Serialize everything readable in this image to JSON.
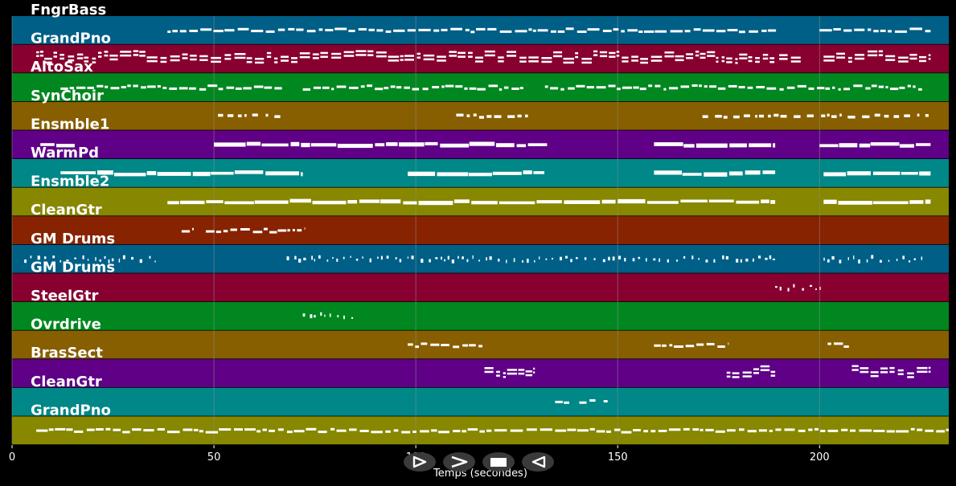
{
  "colors": {
    "background": "#000000",
    "note": "#ffffff",
    "grid": "#8a8a8a",
    "track_colors": [
      "#005f87",
      "#87002f",
      "#00871f",
      "#875f00",
      "#5f0087",
      "#008787",
      "#878700",
      "#872300"
    ]
  },
  "tracks": [
    {
      "name": "FngrBass",
      "notes": [
        [
          38.5,
          189.5
        ],
        [
          200,
          227.5
        ]
      ],
      "style": "dense"
    },
    {
      "name": "GrandPno",
      "notes": [
        [
          6,
          189
        ],
        [
          190,
          196
        ],
        [
          201,
          227.5
        ]
      ],
      "style": "chords"
    },
    {
      "name": "AltoSax",
      "notes": [
        [
          12,
          67
        ],
        [
          72,
          127
        ],
        [
          132,
          226
        ]
      ],
      "style": "phrase"
    },
    {
      "name": "SynChoir",
      "notes": [
        [
          51,
          67.5
        ],
        [
          110,
          128
        ],
        [
          171,
          227
        ]
      ],
      "style": "sparse"
    },
    {
      "name": "Ensmble1",
      "notes": [
        [
          7,
          15.5
        ],
        [
          50,
          132.5
        ],
        [
          159,
          189
        ],
        [
          200,
          227.5
        ]
      ],
      "style": "held"
    },
    {
      "name": "WarmPd",
      "notes": [
        [
          12,
          72
        ],
        [
          98,
          132
        ],
        [
          159,
          189
        ],
        [
          201,
          227.5
        ]
      ],
      "style": "held"
    },
    {
      "name": "Ensmble2",
      "notes": [
        [
          38.5,
          189
        ],
        [
          201,
          227.5
        ]
      ],
      "style": "held"
    },
    {
      "name": "CleanGtr",
      "notes": [
        [
          42,
          45
        ],
        [
          48,
          72.5
        ]
      ],
      "style": "phrase"
    },
    {
      "name": "GM Drums",
      "notes": [
        [
          3,
          37
        ],
        [
          68,
          189
        ],
        [
          201,
          226.5
        ]
      ],
      "style": "drums"
    },
    {
      "name": "GM Drums",
      "notes": [
        [
          189,
          202
        ]
      ],
      "style": "drums"
    },
    {
      "name": "SteelGtr",
      "notes": [
        [
          72,
          85
        ]
      ],
      "style": "drums"
    },
    {
      "name": "Ovrdrive",
      "notes": [
        [
          98,
          116.5
        ],
        [
          159,
          177.5
        ],
        [
          202,
          207.5
        ]
      ],
      "style": "phrase"
    },
    {
      "name": "BrasSect",
      "notes": [
        [
          117,
          129.5
        ],
        [
          177,
          189
        ],
        [
          208,
          227.5
        ]
      ],
      "style": "chords"
    },
    {
      "name": "CleanGtr",
      "notes": [
        [
          134.5,
          138
        ],
        [
          140.5,
          144.5
        ],
        [
          146.5,
          147.5
        ]
      ],
      "style": "phrase"
    },
    {
      "name": "GrandPno",
      "notes": [
        [
          6,
          232
        ]
      ],
      "style": "dense"
    }
  ],
  "x_axis": {
    "ticks": [
      0,
      50,
      100,
      150,
      200
    ],
    "tick_labels": [
      "0",
      "50",
      "100",
      "150",
      "200"
    ],
    "label": "Temps (secondes)",
    "range": [
      0,
      232
    ]
  },
  "controls": [
    {
      "icon": "play-from-start-icon",
      "glyph": "⊳"
    },
    {
      "icon": "forward-icon",
      "glyph": ">"
    },
    {
      "icon": "stop-icon",
      "glyph": "■"
    },
    {
      "icon": "rewind-icon",
      "glyph": "⊲"
    }
  ]
}
